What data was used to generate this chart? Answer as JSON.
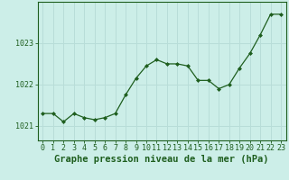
{
  "x": [
    0,
    1,
    2,
    3,
    4,
    5,
    6,
    7,
    8,
    9,
    10,
    11,
    12,
    13,
    14,
    15,
    16,
    17,
    18,
    19,
    20,
    21,
    22,
    23
  ],
  "y": [
    1021.3,
    1021.3,
    1021.1,
    1021.3,
    1021.2,
    1021.15,
    1021.2,
    1021.3,
    1021.75,
    1022.15,
    1022.45,
    1022.6,
    1022.5,
    1022.5,
    1022.45,
    1022.1,
    1022.1,
    1021.9,
    1022.0,
    1022.4,
    1022.75,
    1023.2,
    1023.7,
    1023.7
  ],
  "line_color": "#1e5e1e",
  "marker": "D",
  "marker_size": 2.0,
  "background_color": "#cceee8",
  "grid_color": "#b8ddd8",
  "xlabel": "Graphe pression niveau de la mer (hPa)",
  "xlabel_fontsize": 7.5,
  "xlabel_fontweight": "bold",
  "xlabel_color": "#1e5e1e",
  "ytick_labels": [
    "1021",
    "1022",
    "1023"
  ],
  "ytick_values": [
    1021,
    1022,
    1023
  ],
  "ylim": [
    1020.65,
    1024.0
  ],
  "xlim": [
    -0.5,
    23.5
  ],
  "tick_fontsize": 6.0,
  "tick_color": "#1e5e1e"
}
